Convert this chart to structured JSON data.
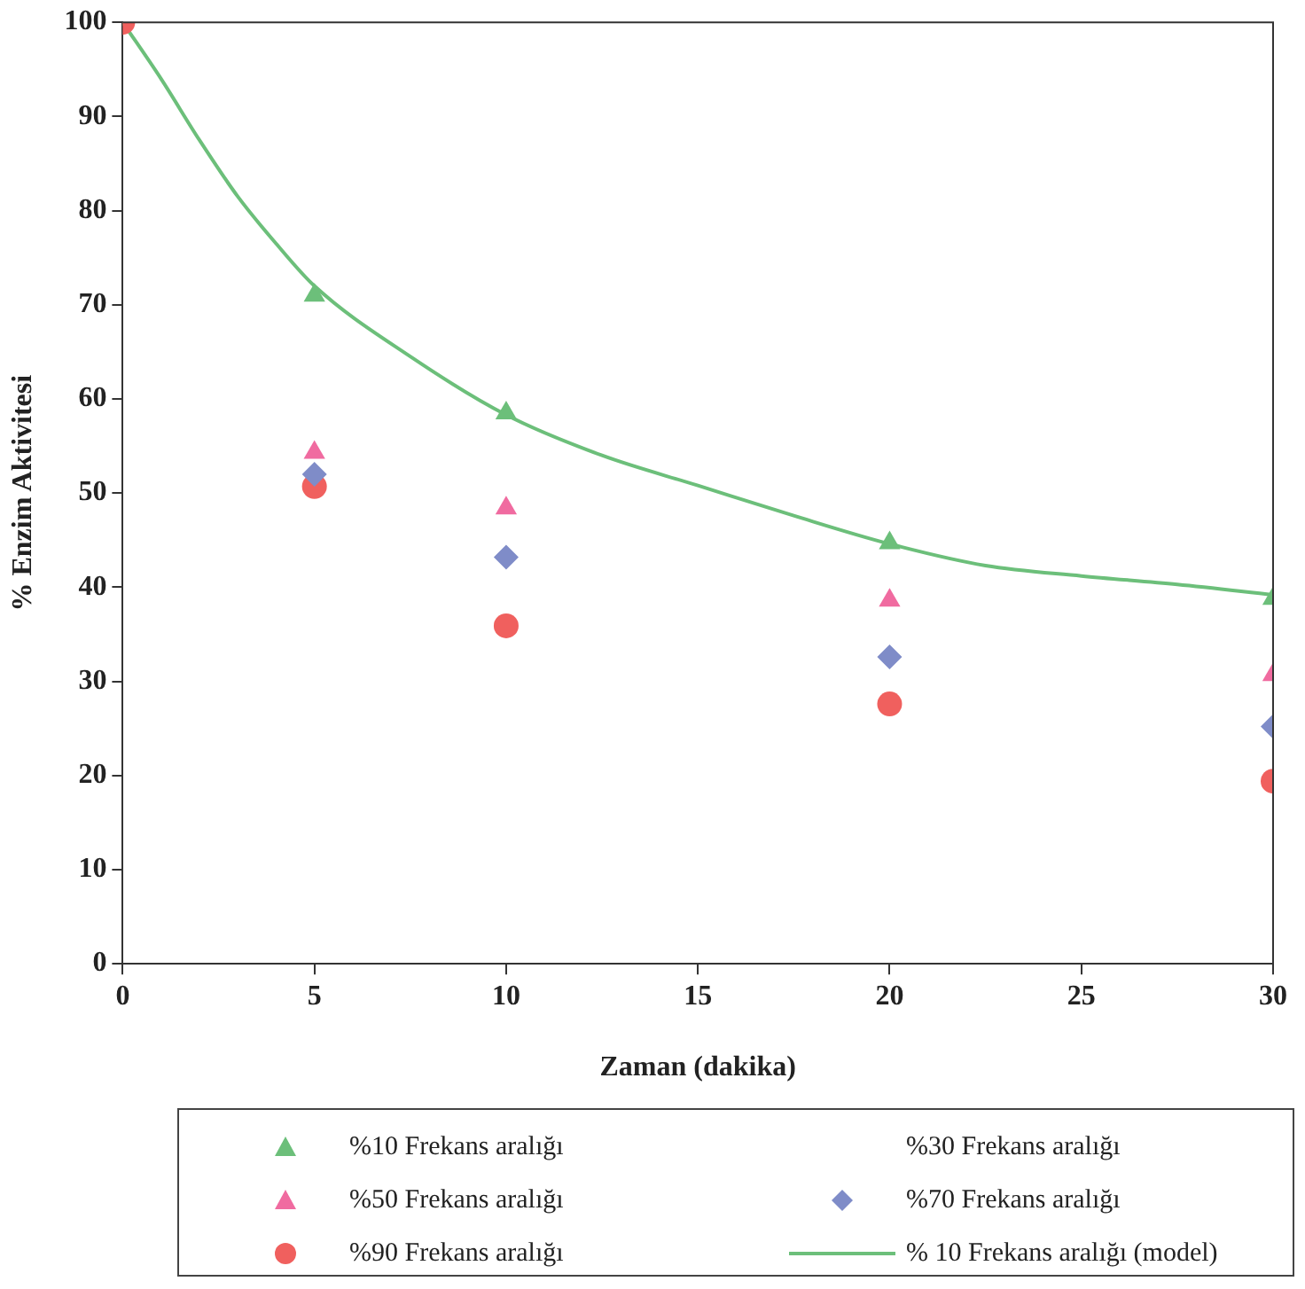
{
  "chart_data": {
    "type": "scatter",
    "xlabel": "Zaman (dakika)",
    "ylabel": "% Enzim Aktivitesi",
    "x": [
      0,
      5,
      10,
      20,
      30
    ],
    "xlim": [
      0,
      30
    ],
    "xticks": [
      0,
      5,
      10,
      15,
      20,
      25,
      30
    ],
    "ylim": [
      0,
      100
    ],
    "yticks": [
      0,
      10,
      20,
      30,
      40,
      50,
      60,
      70,
      80,
      90,
      100
    ],
    "grid": false,
    "legend": "bottom",
    "series": [
      {
        "name": "%10 Frekans aralığı",
        "color": "#6cbf7a",
        "marker": "triangle",
        "values": [
          null,
          71,
          58.5,
          44.7,
          38.8
        ]
      },
      {
        "name": "%30 Frekans aralığı",
        "marker": "none",
        "values": [
          null,
          null,
          null,
          null,
          null
        ]
      },
      {
        "name": "%50 Frekans aralığı",
        "color": "#f06ba0",
        "marker": "triangle",
        "values": [
          null,
          54.3,
          48.4,
          38.6,
          30.7
        ]
      },
      {
        "name": "%70 Frekans aralığı",
        "color": "#7f8cc8",
        "marker": "diamond",
        "values": [
          null,
          52,
          43.2,
          32.6,
          25.2
        ]
      },
      {
        "name": "%90 Frekans aralığı",
        "color": "#f0605e",
        "marker": "circle",
        "values": [
          100,
          50.7,
          35.9,
          27.6,
          19.4
        ]
      },
      {
        "name": "% 10 Frekans aralığı (model)",
        "type": "line",
        "color": "#6cbf7a",
        "marker": "none",
        "line_style": "solid",
        "x": [
          0,
          1,
          2,
          3,
          4,
          5,
          7.5,
          10,
          12.5,
          15,
          17.5,
          20,
          22.5,
          25,
          27.5,
          30
        ],
        "values": [
          100,
          94,
          87.5,
          81.5,
          76.5,
          72,
          64.5,
          58.3,
          54,
          50.8,
          47.6,
          44.6,
          42.3,
          41.2,
          40.3,
          39.2
        ]
      }
    ]
  }
}
